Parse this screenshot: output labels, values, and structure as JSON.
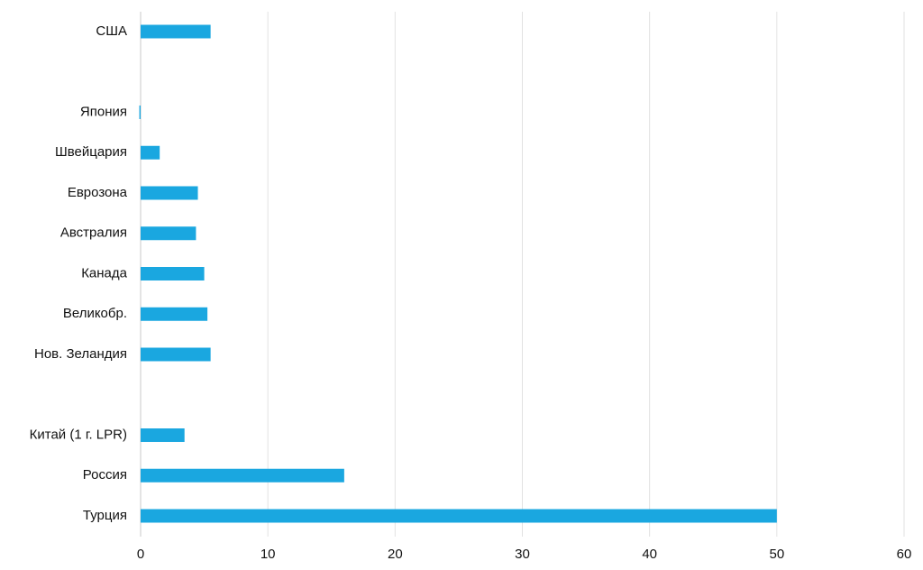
{
  "chart_data": {
    "type": "hbar",
    "categories": [
      "США",
      null,
      "Япония",
      "Швейцария",
      "Еврозона",
      "Австралия",
      "Канада",
      "Великобр.",
      "Нов. Зеландия",
      null,
      "Китай (1 г. LPR)",
      "Россия",
      "Турция"
    ],
    "values": [
      5.5,
      null,
      -0.1,
      1.5,
      4.5,
      4.35,
      5,
      5.25,
      5.5,
      null,
      3.45,
      16,
      50
    ],
    "color": "#1aa7e0",
    "xlim": [
      0,
      60
    ],
    "xticks": [
      0,
      10,
      20,
      30,
      40,
      50,
      60
    ],
    "grid": true
  }
}
